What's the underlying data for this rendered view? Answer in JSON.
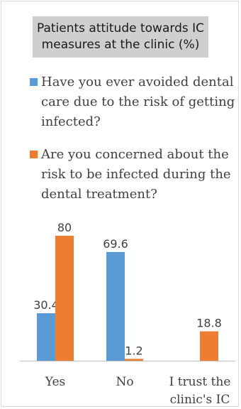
{
  "chart_data": {
    "type": "bar",
    "title": "Patients attitude towards IC measures at the clinic (%)",
    "categories": [
      "Yes",
      "No",
      "I trust the clinic's IC"
    ],
    "series": [
      {
        "name": "Have you ever avoided dental care due to the risk of getting infected?",
        "values": [
          30.4,
          69.6,
          null
        ]
      },
      {
        "name": "Are you concerned about the risk to be infected during the dental treatment?",
        "values": [
          80,
          1.2,
          18.8
        ]
      }
    ],
    "colors": [
      "#5b9bd5",
      "#ed7d31"
    ],
    "ylim": [
      0,
      80
    ],
    "grid": false,
    "legend": "top"
  }
}
